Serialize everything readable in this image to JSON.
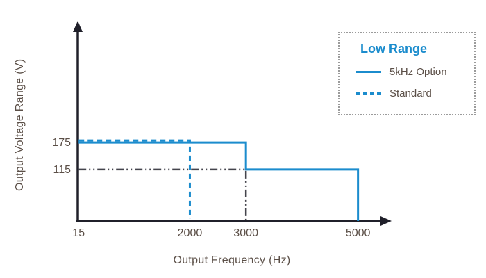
{
  "colors": {
    "accent": "#1b8ccd",
    "text": "#5b4f47",
    "axis": "#20202a",
    "dark_line": "#44444c",
    "legend_border": "#9b9b9b"
  },
  "chart_data": {
    "type": "line",
    "title": "",
    "xlabel": "Output Frequency (Hz)",
    "ylabel": "Output Voltage Range (V)",
    "xlim": [
      0,
      5500
    ],
    "ylim": [
      0,
      400
    ],
    "grid": false,
    "x_ticks": [
      15,
      2000,
      3000,
      5000
    ],
    "y_ticks": [
      115,
      175
    ],
    "legend": {
      "title": "Low Range",
      "position": "top-right",
      "border": "dotted"
    },
    "series": [
      {
        "name": "5kHz Option",
        "style": "solid",
        "color_key": "accent",
        "in_legend": true,
        "points": [
          [
            15,
            175
          ],
          [
            3000,
            175
          ],
          [
            3000,
            115
          ],
          [
            5000,
            115
          ],
          [
            5000,
            0
          ]
        ]
      },
      {
        "name": "Standard",
        "style": "dashed",
        "color_key": "accent",
        "in_legend": true,
        "points": [
          [
            15,
            175
          ],
          [
            2000,
            175
          ],
          [
            2000,
            0
          ]
        ]
      },
      {
        "name": "Standard 115 V segment",
        "style": "dashdot",
        "color_key": "dark_line",
        "in_legend": false,
        "points": [
          [
            15,
            115
          ],
          [
            3000,
            115
          ],
          [
            3000,
            0
          ]
        ]
      }
    ]
  }
}
